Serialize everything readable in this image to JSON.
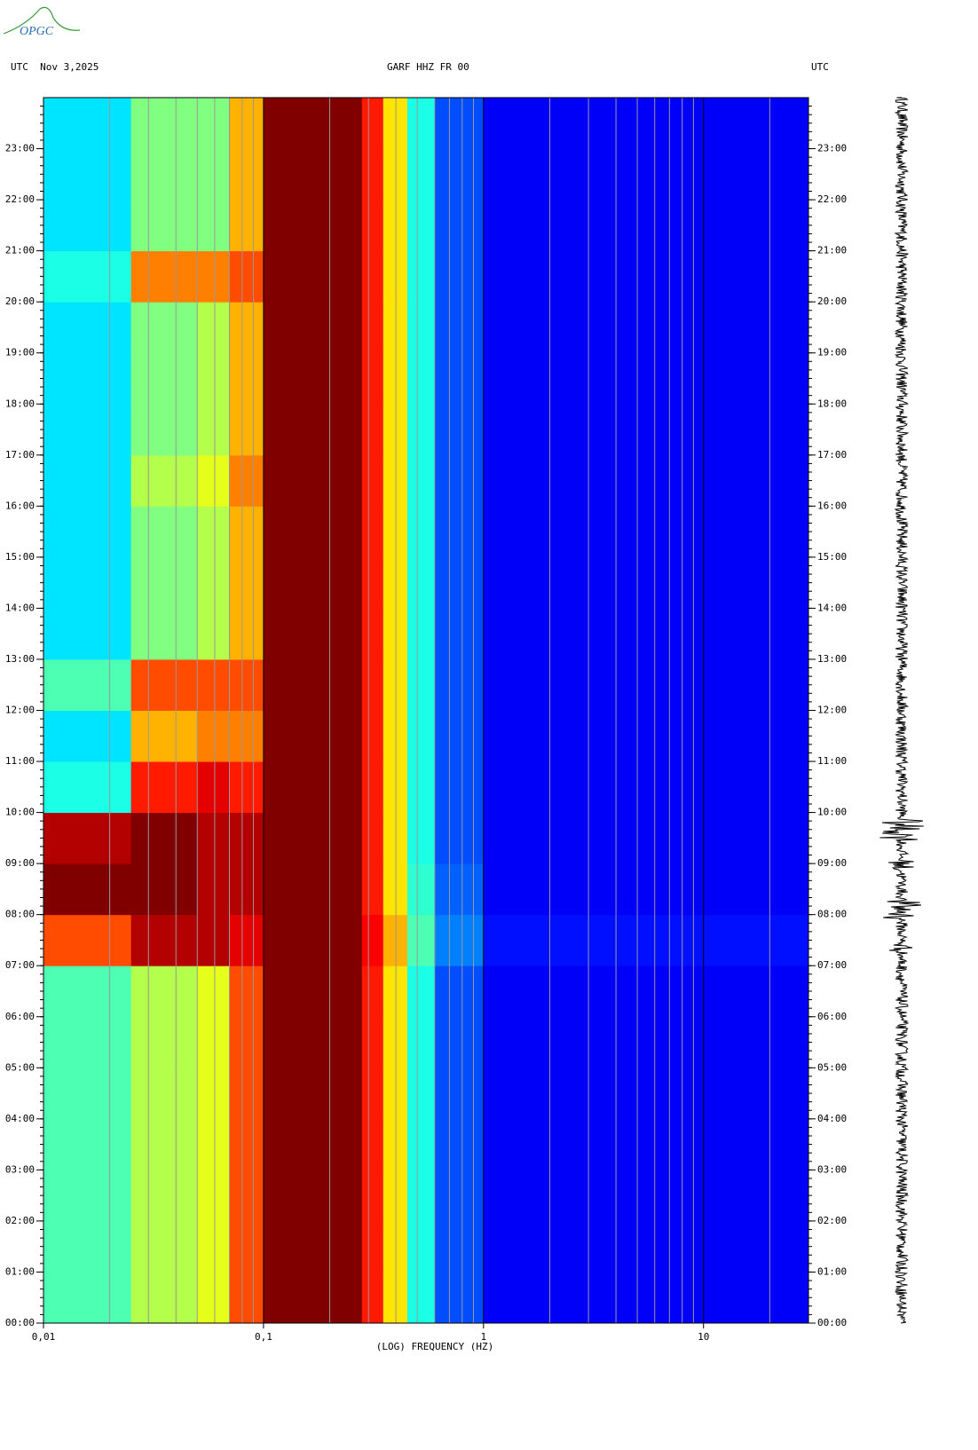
{
  "logo": "OPGC",
  "chart_data": {
    "type": "heatmap",
    "title": "GARF HHZ FR 00",
    "date_label": "UTC  Nov 3,2025",
    "right_label": "UTC",
    "xlabel": "(LOG) FREQUENCY (HZ)",
    "xscale": "log",
    "colormap": "jet",
    "xlim": [
      0.01,
      30
    ],
    "xticks": [
      {
        "value": 0.01,
        "label": "0,01"
      },
      {
        "value": 0.1,
        "label": "0,1"
      },
      1,
      10
    ],
    "ylim": [
      0,
      24
    ],
    "yticks": [
      {
        "value": 0,
        "label": "00:00"
      },
      {
        "value": 1,
        "label": "01:00"
      },
      {
        "value": 2,
        "label": "02:00"
      },
      {
        "value": 3,
        "label": "03:00"
      },
      {
        "value": 4,
        "label": "04:00"
      },
      {
        "value": 5,
        "label": "05:00"
      },
      {
        "value": 6,
        "label": "06:00"
      },
      {
        "value": 7,
        "label": "07:00"
      },
      {
        "value": 8,
        "label": "08:00"
      },
      {
        "value": 9,
        "label": "09:00"
      },
      {
        "value": 10,
        "label": "10:00"
      },
      {
        "value": 11,
        "label": "11:00"
      },
      {
        "value": 12,
        "label": "12:00"
      },
      {
        "value": 13,
        "label": "13:00"
      },
      {
        "value": 14,
        "label": "14:00"
      },
      {
        "value": 15,
        "label": "15:00"
      },
      {
        "value": 16,
        "label": "16:00"
      },
      {
        "value": 17,
        "label": "17:00"
      },
      {
        "value": 18,
        "label": "18:00"
      },
      {
        "value": 19,
        "label": "19:00"
      },
      {
        "value": 20,
        "label": "20:00"
      },
      {
        "value": 21,
        "label": "21:00"
      },
      {
        "value": 22,
        "label": "22:00"
      },
      {
        "value": 23,
        "label": "23:00"
      }
    ],
    "x_edges": [
      0.01,
      0.025,
      0.05,
      0.07,
      0.1,
      0.28,
      0.35,
      0.45,
      0.6,
      1,
      30
    ],
    "z": [
      [
        0.45,
        0.55,
        0.6,
        0.8,
        1,
        0.85,
        0.65,
        0.4,
        0.2,
        0.12
      ],
      [
        0.45,
        0.55,
        0.6,
        0.8,
        1,
        0.85,
        0.65,
        0.4,
        0.2,
        0.12
      ],
      [
        0.45,
        0.55,
        0.6,
        0.8,
        1,
        0.85,
        0.65,
        0.4,
        0.2,
        0.12
      ],
      [
        0.45,
        0.55,
        0.6,
        0.8,
        1,
        0.85,
        0.65,
        0.4,
        0.2,
        0.12
      ],
      [
        0.45,
        0.55,
        0.6,
        0.8,
        1,
        0.85,
        0.65,
        0.4,
        0.2,
        0.12
      ],
      [
        0.45,
        0.55,
        0.6,
        0.8,
        1,
        0.85,
        0.65,
        0.4,
        0.2,
        0.12
      ],
      [
        0.45,
        0.55,
        0.6,
        0.8,
        1,
        0.85,
        0.65,
        0.4,
        0.2,
        0.12
      ],
      [
        0.8,
        0.95,
        0.95,
        0.9,
        1,
        0.88,
        0.7,
        0.45,
        0.25,
        0.14
      ],
      [
        1,
        1,
        0.95,
        0.95,
        1,
        0.85,
        0.65,
        0.42,
        0.22,
        0.12
      ],
      [
        0.95,
        1,
        0.95,
        0.95,
        1,
        0.85,
        0.65,
        0.4,
        0.2,
        0.12
      ],
      [
        0.4,
        0.85,
        0.9,
        0.85,
        1,
        0.85,
        0.65,
        0.4,
        0.2,
        0.12
      ],
      [
        0.35,
        0.7,
        0.75,
        0.75,
        1,
        0.85,
        0.65,
        0.4,
        0.2,
        0.12
      ],
      [
        0.45,
        0.8,
        0.8,
        0.8,
        1,
        0.85,
        0.65,
        0.4,
        0.2,
        0.12
      ],
      [
        0.35,
        0.5,
        0.55,
        0.7,
        1,
        0.85,
        0.65,
        0.4,
        0.2,
        0.12
      ],
      [
        0.35,
        0.5,
        0.55,
        0.7,
        1,
        0.85,
        0.65,
        0.4,
        0.2,
        0.12
      ],
      [
        0.35,
        0.5,
        0.55,
        0.7,
        1,
        0.85,
        0.65,
        0.4,
        0.2,
        0.12
      ],
      [
        0.35,
        0.55,
        0.6,
        0.75,
        1,
        0.85,
        0.65,
        0.4,
        0.2,
        0.12
      ],
      [
        0.35,
        0.5,
        0.55,
        0.7,
        1,
        0.85,
        0.65,
        0.4,
        0.2,
        0.12
      ],
      [
        0.35,
        0.5,
        0.55,
        0.7,
        1,
        0.85,
        0.65,
        0.4,
        0.2,
        0.12
      ],
      [
        0.35,
        0.5,
        0.55,
        0.7,
        1,
        0.85,
        0.65,
        0.4,
        0.2,
        0.12
      ],
      [
        0.4,
        0.75,
        0.75,
        0.8,
        1,
        0.85,
        0.65,
        0.4,
        0.2,
        0.12
      ],
      [
        0.35,
        0.5,
        0.5,
        0.7,
        1,
        0.85,
        0.65,
        0.4,
        0.2,
        0.12
      ],
      [
        0.35,
        0.5,
        0.5,
        0.7,
        1,
        0.85,
        0.65,
        0.4,
        0.2,
        0.12
      ],
      [
        0.35,
        0.5,
        0.5,
        0.7,
        1,
        0.85,
        0.65,
        0.4,
        0.2,
        0.12
      ]
    ]
  }
}
